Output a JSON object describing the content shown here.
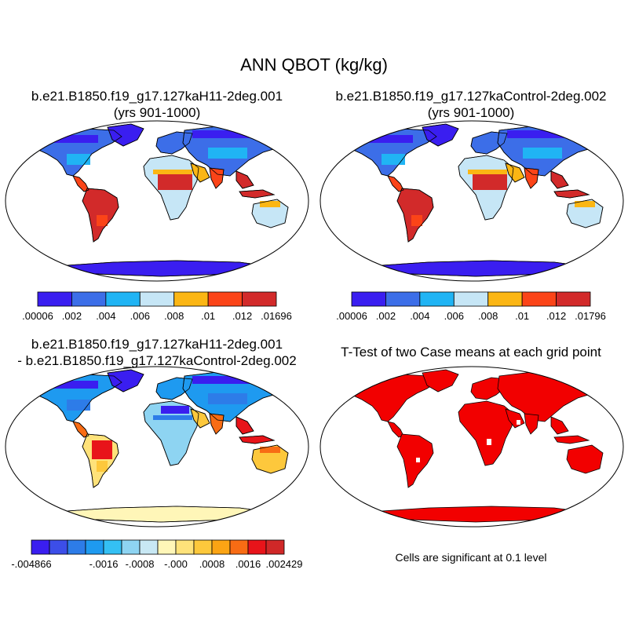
{
  "main_title": "ANN QBOT (kg/kg)",
  "panels": {
    "top_left": {
      "title_line1": "b.e21.B1850.f19_g17.127kaH11-2deg.001",
      "title_line2": "(yrs 901-1000)",
      "colorbar": {
        "colors": [
          "#3a1ef0",
          "#3c6ee8",
          "#20b4f4",
          "#c6e6f6",
          "#fbb614",
          "#fb4418",
          "#d22a2a"
        ],
        "labels": [
          ".00006",
          ".002",
          ".004",
          ".006",
          ".008",
          ".01",
          ".012",
          ".01696"
        ]
      }
    },
    "top_right": {
      "title_line1": "b.e21.B1850.f19_g17.127kaControl-2deg.002",
      "title_line2": "(yrs 901-1000)",
      "colorbar": {
        "colors": [
          "#3a1ef0",
          "#3c6ee8",
          "#20b4f4",
          "#c6e6f6",
          "#fbb614",
          "#fb4418",
          "#d22a2a"
        ],
        "labels": [
          ".00006",
          ".002",
          ".004",
          ".006",
          ".008",
          ".01",
          ".012",
          ".01796"
        ]
      }
    },
    "bottom_left": {
      "title_line1": "b.e21.B1850.f19_g17.127kaH11-2deg.001",
      "title_line2": "- b.e21.B1850.f19_g17.127kaControl-2deg.002",
      "colorbar": {
        "colors": [
          "#3a1ef0",
          "#3c4ee8",
          "#2d7ce8",
          "#1e9af0",
          "#34c0f4",
          "#8ed4f2",
          "#c8e8f4",
          "#fff6b8",
          "#fee27a",
          "#fdc83c",
          "#fba414",
          "#f86c14",
          "#e8141a",
          "#d02828"
        ],
        "labels": [
          "-.004866",
          "-.0016",
          "-.0008",
          "-.000",
          ".0008",
          ".0016",
          ".002429"
        ]
      }
    },
    "bottom_right": {
      "title": "T-Test of two Case means at each grid point",
      "note": "Cells are significant at 0.1 level",
      "fill_color": "#f20000"
    }
  },
  "map_colors": {
    "topleft": {
      "north": "#3c6ee8",
      "high": "#3a1ef0",
      "mid": "#20b4f4",
      "light": "#c6e6f6",
      "orange": "#fbb614",
      "red": "#fb4418",
      "darkred": "#d22a2a",
      "antarctica": "#3a1ef0"
    },
    "topright": {
      "north": "#3c6ee8",
      "high": "#3a1ef0",
      "mid": "#20b4f4",
      "light": "#c6e6f6",
      "orange": "#fbb614",
      "red": "#fb4418",
      "darkred": "#d22a2a",
      "antarctica": "#3a1ef0"
    },
    "diff": {
      "north": "#1e9af0",
      "high": "#3a1ef0",
      "mid": "#2d7ce8",
      "light": "#8ed4f2",
      "orange": "#fdc83c",
      "red": "#f86c14",
      "darkred": "#e8141a",
      "antarctica": "#fff6b8",
      "pale": "#fee27a"
    }
  }
}
